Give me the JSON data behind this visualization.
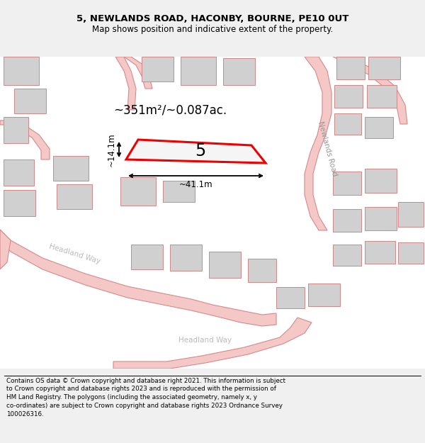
{
  "title": "5, NEWLANDS ROAD, HACONBY, BOURNE, PE10 0UT",
  "subtitle": "Map shows position and indicative extent of the property.",
  "footer": "Contains OS data © Crown copyright and database right 2021. This information is subject\nto Crown copyright and database rights 2023 and is reproduced with the permission of\nHM Land Registry. The polygons (including the associated geometry, namely x, y\nco-ordinates) are subject to Crown copyright and database rights 2023 Ordnance Survey\n100026316.",
  "bg_color": "#f0f0f0",
  "map_bg": "#f8f8f8",
  "road_color": "#f5c8c8",
  "road_outline": "#d88888",
  "building_fill": "#d0d0d0",
  "building_outline": "#d08888",
  "highlight_color": "#ee0000",
  "area_text": "~351m²/~0.087ac.",
  "label_5": "5",
  "dim_width": "~41.1m",
  "dim_height": "~14.1m",
  "road_label_newlands": "Newlands Road",
  "road_label_hw1": "Headland Way",
  "road_label_hw2": "Headland Way"
}
